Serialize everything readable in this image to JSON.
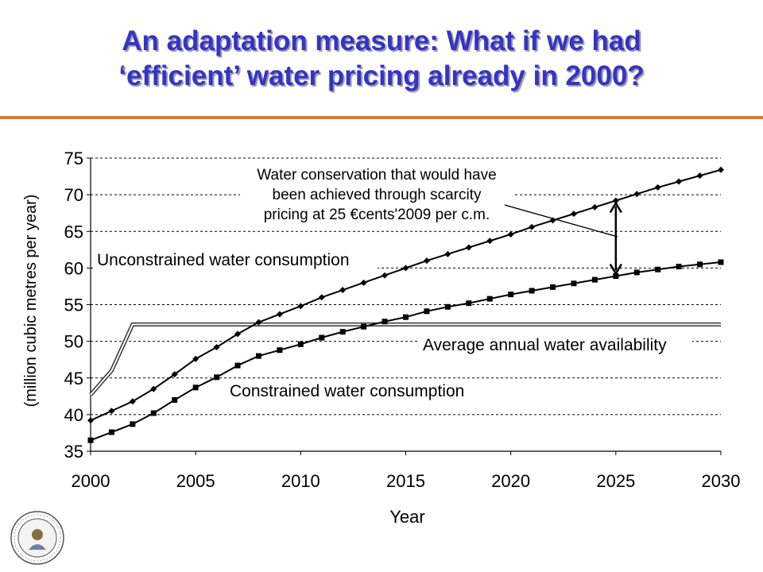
{
  "slide": {
    "title_line1": "An adaptation measure: What if we had",
    "title_line2": "‘efficient’ water pricing already in 2000?",
    "title_color": "#3333cc",
    "rule_color": "#e87722"
  },
  "chart_data": {
    "type": "line",
    "xlabel": "Year",
    "ylabel": "(million cubic metres per year)",
    "xlim": [
      2000,
      2030
    ],
    "ylim": [
      35,
      75
    ],
    "x_ticks": [
      2000,
      2005,
      2010,
      2015,
      2020,
      2025,
      2030
    ],
    "y_ticks": [
      35,
      40,
      45,
      50,
      55,
      60,
      65,
      70,
      75
    ],
    "grid": "horizontal-dashed",
    "x": [
      2000,
      2001,
      2002,
      2003,
      2004,
      2005,
      2006,
      2007,
      2008,
      2009,
      2010,
      2011,
      2012,
      2013,
      2014,
      2015,
      2016,
      2017,
      2018,
      2019,
      2020,
      2021,
      2022,
      2023,
      2024,
      2025,
      2026,
      2027,
      2028,
      2029,
      2030
    ],
    "series": [
      {
        "name": "Unconstrained water consumption",
        "marker": "diamond",
        "values": [
          39.2,
          40.5,
          41.8,
          43.5,
          45.5,
          47.6,
          49.2,
          51.0,
          52.6,
          53.7,
          54.8,
          56.0,
          57.0,
          58.0,
          59.0,
          60.0,
          61.0,
          61.9,
          62.8,
          63.7,
          64.6,
          65.6,
          66.5,
          67.4,
          68.3,
          69.2,
          70.1,
          71.0,
          71.8,
          72.6,
          73.4
        ]
      },
      {
        "name": "Constrained water consumption",
        "marker": "square",
        "values": [
          36.5,
          37.6,
          38.7,
          40.2,
          42.0,
          43.7,
          45.1,
          46.7,
          48.0,
          48.8,
          49.6,
          50.5,
          51.3,
          52.0,
          52.7,
          53.3,
          54.1,
          54.7,
          55.2,
          55.8,
          56.4,
          56.9,
          57.4,
          57.9,
          58.4,
          58.9,
          59.4,
          59.8,
          60.2,
          60.5,
          60.8
        ]
      },
      {
        "name": "Average annual water availability",
        "marker": "none",
        "x": [
          2000,
          2001,
          2002,
          2030
        ],
        "values": [
          42.7,
          46.0,
          52.3,
          52.3
        ]
      }
    ],
    "annotations": [
      {
        "text_lines": [
          "Water conservation that would have",
          "been achieved through scarcity",
          "pricing at 25 €cents'2009 per c.m."
        ]
      },
      {
        "text": "Unconstrained water consumption"
      },
      {
        "text": "Average annual water availability"
      },
      {
        "text": "Constrained water consumption"
      }
    ],
    "conservation_arrow": {
      "x": 2025,
      "from": 58.9,
      "to": 69.2
    }
  }
}
